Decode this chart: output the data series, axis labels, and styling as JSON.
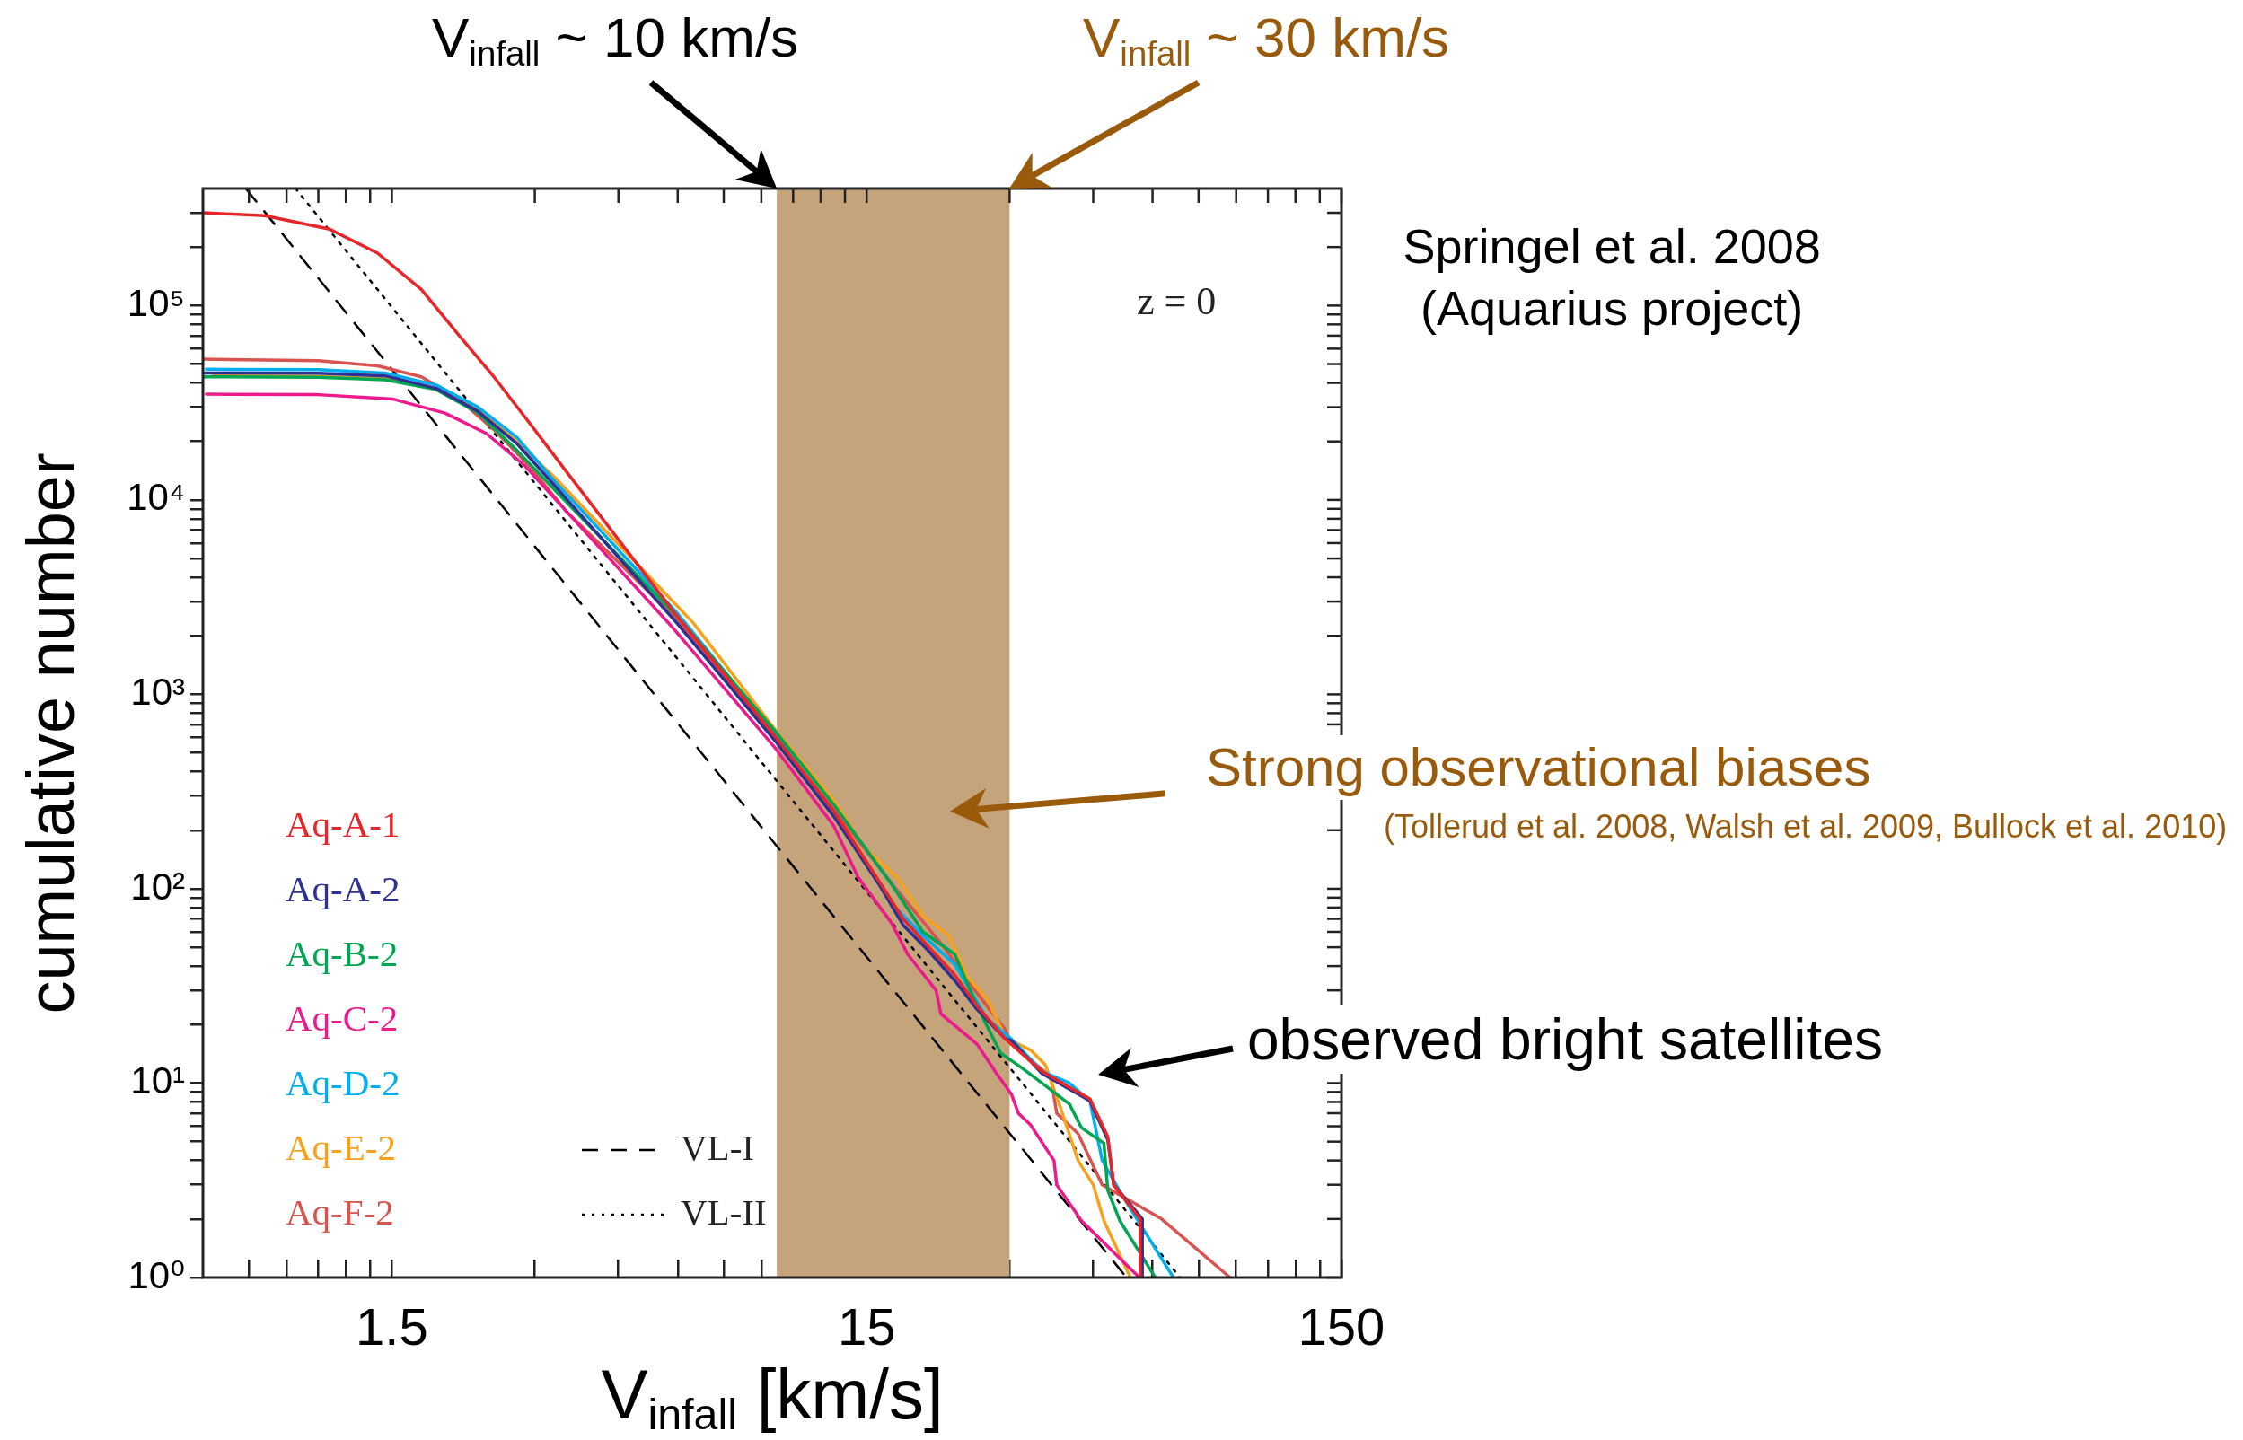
{
  "chart_data": {
    "type": "line",
    "xlabel": "V$_{infall}$ [km/s]",
    "ylabel": "cumulative number",
    "log": "xy",
    "legend": "bottom left",
    "xlim": [
      0.6,
      150
    ],
    "ylim": [
      1,
      400000
    ],
    "xticks": [
      {
        "value": 0.75,
        "label": null
      },
      {
        "value": 0.9,
        "label": null
      },
      {
        "value": 1.05,
        "label": null
      },
      {
        "value": 1.2,
        "label": null
      },
      {
        "value": 1.35,
        "label": null
      },
      1.5,
      {
        "value": 3,
        "label": null
      },
      {
        "value": 4.5,
        "label": null
      },
      {
        "value": 6,
        "label": null
      },
      {
        "value": 7.5,
        "label": null
      },
      {
        "value": 9,
        "label": null
      },
      {
        "value": 10.5,
        "label": null
      },
      {
        "value": 12,
        "label": null
      },
      {
        "value": 13.5,
        "label": null
      },
      15,
      {
        "value": 30,
        "label": null
      },
      {
        "value": 45,
        "label": null
      },
      {
        "value": 60,
        "label": null
      },
      {
        "value": 75,
        "label": null
      },
      {
        "value": 90,
        "label": null
      },
      {
        "value": 105,
        "label": null
      },
      {
        "value": 120,
        "label": null
      },
      {
        "value": 135,
        "label": null
      },
      150
    ],
    "yticks": [
      {
        "value": 1,
        "label": "10⁰"
      },
      {
        "value": 2,
        "label": null
      },
      {
        "value": 3,
        "label": null
      },
      {
        "value": 4,
        "label": null
      },
      {
        "value": 5,
        "label": null
      },
      {
        "value": 6,
        "label": null
      },
      {
        "value": 7,
        "label": null
      },
      {
        "value": 8,
        "label": null
      },
      {
        "value": 9,
        "label": null
      },
      {
        "value": 10,
        "label": "10¹"
      },
      {
        "value": 20,
        "label": null
      },
      {
        "value": 30,
        "label": null
      },
      {
        "value": 40,
        "label": null
      },
      {
        "value": 50,
        "label": null
      },
      {
        "value": 60,
        "label": null
      },
      {
        "value": 70,
        "label": null
      },
      {
        "value": 80,
        "label": null
      },
      {
        "value": 90,
        "label": null
      },
      {
        "value": 100,
        "label": "10²"
      },
      {
        "value": 200,
        "label": null
      },
      {
        "value": 300,
        "label": null
      },
      {
        "value": 400,
        "label": null
      },
      {
        "value": 500,
        "label": null
      },
      {
        "value": 600,
        "label": null
      },
      {
        "value": 700,
        "label": null
      },
      {
        "value": 800,
        "label": null
      },
      {
        "value": 900,
        "label": null
      },
      {
        "value": 1000,
        "label": "10³"
      },
      {
        "value": 2000,
        "label": null
      },
      {
        "value": 3000,
        "label": null
      },
      {
        "value": 4000,
        "label": null
      },
      {
        "value": 5000,
        "label": null
      },
      {
        "value": 6000,
        "label": null
      },
      {
        "value": 7000,
        "label": null
      },
      {
        "value": 8000,
        "label": null
      },
      {
        "value": 9000,
        "label": null
      },
      {
        "value": 10000,
        "label": "10⁴"
      },
      {
        "value": 20000,
        "label": null
      },
      {
        "value": 30000,
        "label": null
      },
      {
        "value": 40000,
        "label": null
      },
      {
        "value": 50000,
        "label": null
      },
      {
        "value": 60000,
        "label": null
      },
      {
        "value": 70000,
        "label": null
      },
      {
        "value": 80000,
        "label": null
      },
      {
        "value": 90000,
        "label": null
      },
      {
        "value": 100000,
        "label": "10⁵"
      },
      {
        "value": 200000,
        "label": null
      },
      {
        "value": 300000,
        "label": null
      }
    ],
    "series": [
      {
        "name": "Aq-A-1",
        "color": "#e8262a",
        "x": [
          0.6,
          0.81,
          1.11,
          1.4,
          1.73,
          2.06,
          2.46,
          2.92,
          3.48,
          6.0,
          9.66,
          12.8,
          15.9,
          17.9,
          20.3,
          23.0,
          25.6,
          29.3,
          35.1,
          40.1,
          44.3,
          48.3,
          49.7,
          56.5,
          56.5
        ],
        "values": [
          300000,
          290000,
          247000,
          186000,
          121000,
          72000,
          43000,
          25000,
          14200,
          2500,
          600,
          250,
          110,
          70,
          50,
          36,
          25,
          17,
          11.5,
          9.5,
          8.3,
          5.3,
          3.0,
          2.0,
          1.0
        ]
      },
      {
        "name": "Aq-A-2",
        "color": "#2e3192",
        "x": [
          0.6,
          1.05,
          1.45,
          1.86,
          2.28,
          2.75,
          3.31,
          6.0,
          9.66,
          12.8,
          15.9,
          17.9,
          20.3,
          23.0,
          25.6,
          29.3,
          30.3,
          35.1,
          40.1,
          44.3,
          48.3,
          49.7,
          57.1,
          57.1
        ],
        "values": [
          45000,
          44800,
          43500,
          37500,
          28500,
          19500,
          11800,
          2300,
          570,
          235,
          106,
          65,
          47.6,
          33.7,
          24,
          17,
          16.5,
          11.2,
          9.3,
          8.1,
          5.1,
          3.0,
          2.0,
          1.0
        ]
      },
      {
        "name": "Aq-B-2",
        "color": "#00a651",
        "x": [
          0.6,
          1.05,
          1.45,
          1.86,
          2.28,
          2.75,
          3.31,
          6.0,
          9.66,
          12.8,
          16.9,
          19.7,
          23.0,
          25.6,
          28.7,
          31.8,
          35.1,
          40.1,
          42.5,
          47.4,
          48.3,
          51.2,
          60.8
        ],
        "values": [
          43000,
          42800,
          41500,
          37000,
          28000,
          18000,
          11200,
          2500,
          640,
          270,
          106,
          60,
          46,
          25,
          14.3,
          12.0,
          10.0,
          7.8,
          5.9,
          4.9,
          2.8,
          1.96,
          1.0
        ]
      },
      {
        "name": "Aq-C-2",
        "color": "#ec1a8c",
        "x": [
          0.61,
          1.05,
          1.51,
          1.94,
          2.37,
          2.86,
          3.48,
          5.86,
          9.66,
          12.8,
          14.4,
          16.9,
          18.3,
          21.0,
          21.5,
          25.6,
          27.9,
          30.3,
          31.3,
          33.2,
          37.2,
          37.7,
          42.5,
          56.3
        ],
        "values": [
          35000,
          34800,
          33000,
          28000,
          22000,
          15000,
          8850,
          2200,
          524,
          210,
          114,
          67,
          46,
          30,
          22.7,
          15.9,
          11.6,
          8.7,
          7.0,
          6.1,
          4.0,
          3.0,
          1.96,
          1.0
        ]
      },
      {
        "name": "Aq-D-2",
        "color": "#00aeef",
        "x": [
          0.61,
          1.05,
          1.45,
          1.86,
          2.28,
          2.75,
          3.31,
          6.0,
          9.66,
          12.8,
          16.9,
          19.7,
          23.0,
          26.9,
          30.3,
          35.1,
          40.1,
          44.3,
          47.0,
          52.0,
          66.4
        ],
        "values": [
          47000,
          46800,
          45000,
          39000,
          30000,
          21000,
          12400,
          2600,
          620,
          240,
          84,
          57.5,
          40.8,
          21.4,
          16.8,
          11.5,
          10.0,
          8.1,
          4.0,
          2.6,
          1.0
        ]
      },
      {
        "name": "Aq-E-2",
        "color": "#f7a21b",
        "x": [
          0.63,
          1.05,
          1.45,
          1.86,
          2.28,
          2.75,
          3.31,
          6.47,
          9.66,
          12.8,
          14.9,
          17.4,
          19.7,
          22.3,
          24.5,
          26.9,
          29.5,
          33.2,
          35.7,
          38.3,
          41.8,
          45.0,
          47.4,
          53.9
        ],
        "values": [
          43500,
          43200,
          42000,
          37000,
          29000,
          20000,
          13000,
          2330,
          650,
          284,
          161,
          114,
          72.6,
          57.5,
          35,
          27,
          17,
          14.8,
          12.4,
          7.6,
          4.0,
          3.0,
          1.96,
          1.0
        ]
      },
      {
        "name": "Aq-F-2",
        "color": "#d9534f",
        "x": [
          0.6,
          1.05,
          1.4,
          1.73,
          2.06,
          2.46,
          2.92,
          3.48,
          6.0,
          9.66,
          12.8,
          17.4,
          21.7,
          25.1,
          29.3,
          30.3,
          36.6,
          37.7,
          41.8,
          47.0,
          62.7,
          87.4
        ],
        "values": [
          53000,
          52000,
          49000,
          43000,
          33500,
          23000,
          15000,
          8850,
          2400,
          590,
          255,
          98,
          51,
          31,
          19,
          15.9,
          10.8,
          7.0,
          5.5,
          3.0,
          2.0,
          1.0
        ]
      },
      {
        "name": "VL-I",
        "color": "#000000",
        "line_style": "dashed",
        "x": [
          0.74,
          9.6,
          52.9
        ],
        "values": [
          398000,
          171,
          1
        ]
      },
      {
        "name": "VL-II",
        "color": "#000000",
        "line_style": "dotted",
        "x": [
          0.94,
          68.6
        ],
        "values": [
          400000,
          1
        ]
      }
    ],
    "bands": [
      {
        "axis": "x",
        "from": 9.7,
        "to": 30,
        "color": "#c5a47b"
      }
    ],
    "annotations": [
      "z = 0",
      "Springel et al. 2008",
      "(Aquarius project)",
      {
        "text": "V$_{infall}$ ~ 10 km/s",
        "x": 9.7,
        "y": 400000
      },
      {
        "text": "V$_{infall}$ ~ 30 km/s",
        "x": 30,
        "y": 400000
      },
      "Strong observational biases",
      "(Tollerud et al. 2008, Walsh et al. 2009, Bullock et al. 2010)",
      "observed bright satellites"
    ]
  }
}
